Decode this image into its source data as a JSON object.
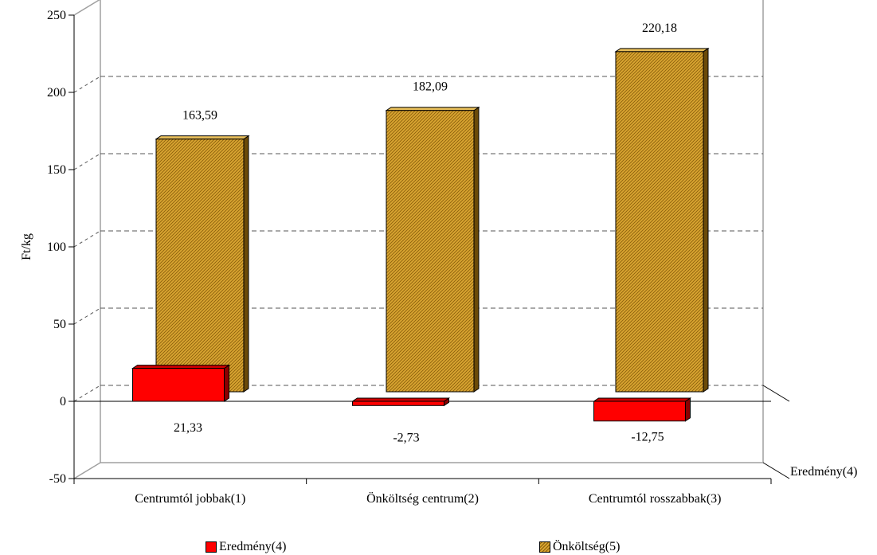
{
  "chart_data": {
    "type": "bar",
    "ylabel": "Ft/kg",
    "xlabel": "",
    "ylim": [
      -50,
      250
    ],
    "yticks": [
      "250",
      "200",
      "150",
      "100",
      "50",
      "0",
      "-50"
    ],
    "categories": [
      "Centrumtól jobbak(1)",
      "Önköltség centrum(2)",
      "Centrumtól rosszabbak(3)"
    ],
    "depth_axis_label": "Eredmény(4)",
    "series": [
      {
        "name": "Eredmény(4)",
        "values": [
          21.33,
          -2.73,
          -12.75
        ],
        "labels": [
          "21,33",
          "-2,73",
          "-12,75"
        ],
        "color": "#ff0000"
      },
      {
        "name": "Önköltség(5)",
        "values": [
          163.59,
          182.09,
          220.18
        ],
        "labels": [
          "163,59",
          "182,09",
          "220,18"
        ],
        "color": "#d9a531"
      }
    ],
    "gridlines": "dashed",
    "legend_position": "bottom"
  }
}
